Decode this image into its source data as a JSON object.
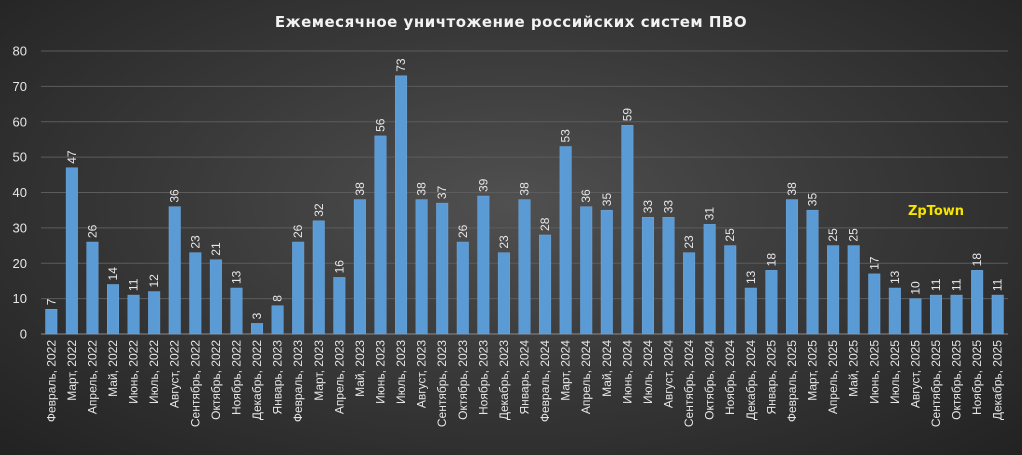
{
  "chart_data": {
    "type": "bar",
    "title": "Ежемесячное  уничтожение  российских  систем ПВО",
    "xlabel": "",
    "ylabel": "",
    "ylim": [
      0,
      80
    ],
    "yticks": [
      "0",
      "10",
      "20",
      "30",
      "40",
      "50",
      "60",
      "70",
      "80"
    ],
    "grid": true,
    "legend": "none",
    "bar_color": "#5b9bd5",
    "categories": [
      "Февраль, 2022",
      "Март, 2022",
      "Апрель, 2022",
      "Май, 2022",
      "Июнь, 2022",
      "Июль, 2022",
      "Август, 2022",
      "Сентябрь, 2022",
      "Октябрь, 2022",
      "Ноябрь, 2022",
      "Декабрь, 2022",
      "Январь, 2023",
      "Февраль, 2023",
      "Март, 2023",
      "Апрель, 2023",
      "Май, 2023",
      "Июнь, 2023",
      "Июль, 2023",
      "Август, 2023",
      "Сентябрь, 2023",
      "Октябрь, 2023",
      "Ноябрь, 2023",
      "Декабрь, 2023",
      "Январь, 2024",
      "Февраль, 2024",
      "Март, 2024",
      "Апрель, 2024",
      "Май, 2024",
      "Июнь, 2024",
      "Июль, 2024",
      "Август, 2024",
      "Сентябрь, 2024",
      "Октябрь, 2024",
      "Ноябрь, 2024",
      "Декабрь, 2024",
      "Январь, 2025",
      "Февраль, 2025",
      "Март, 2025",
      "Апрель, 2025",
      "Май, 2025",
      "Июнь, 2025",
      "Июль, 2025",
      "Август, 2025",
      "Сентябрь, 2025",
      "Октябрь, 2025",
      "Ноябрь, 2025",
      "Декабрь, 2025"
    ],
    "values": [
      7,
      47,
      26,
      14,
      11,
      12,
      36,
      23,
      21,
      13,
      3,
      8,
      26,
      32,
      16,
      38,
      56,
      73,
      38,
      37,
      26,
      39,
      23,
      38,
      28,
      53,
      36,
      35,
      59,
      33,
      33,
      23,
      31,
      25,
      13,
      18,
      38,
      35,
      25,
      25,
      17,
      13,
      10,
      11,
      11,
      18,
      11
    ],
    "watermark": "ZpTown"
  }
}
